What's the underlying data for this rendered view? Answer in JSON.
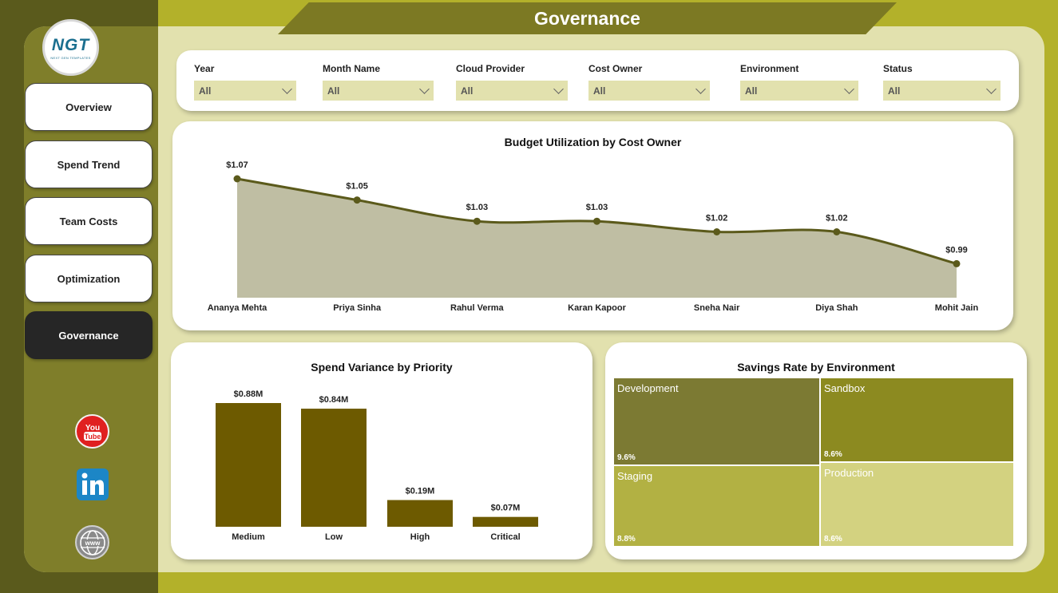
{
  "page_title": "Governance",
  "logo": {
    "text": "NGT",
    "subtitle": "NEXT GEN TEMPLATES"
  },
  "nav": [
    {
      "label": "Overview"
    },
    {
      "label": "Spend Trend"
    },
    {
      "label": "Team Costs"
    },
    {
      "label": "Optimization"
    },
    {
      "label": "Governance",
      "active": true
    }
  ],
  "social": [
    {
      "icon": "youtube-icon",
      "label": "You Tube"
    },
    {
      "icon": "linkedin-icon",
      "label": "in"
    },
    {
      "icon": "www-globe-icon",
      "label": "www"
    }
  ],
  "filters": [
    {
      "label": "Year",
      "value": "All"
    },
    {
      "label": "Month Name",
      "value": "All"
    },
    {
      "label": "Cloud Provider",
      "value": "All"
    },
    {
      "label": "Cost Owner",
      "value": "All"
    },
    {
      "label": "Environment",
      "value": "All"
    },
    {
      "label": "Status",
      "value": "All"
    }
  ],
  "colors": {
    "accent": "#7c7923",
    "line": "#5b5a1b",
    "area_fill": "#bfbea3",
    "bar": "#6d5a00",
    "panel_bg": "#e2e1ae"
  },
  "chart_data": [
    {
      "type": "area",
      "title": "Budget Utilization by Cost Owner",
      "categories": [
        "Ananya Mehta",
        "Priya Sinha",
        "Rahul Verma",
        "Karan Kapoor",
        "Sneha Nair",
        "Diya Shah",
        "Mohit Jain"
      ],
      "values": [
        1.07,
        1.05,
        1.03,
        1.03,
        1.02,
        1.02,
        0.99
      ],
      "labels": [
        "$1.07",
        "$1.05",
        "$1.03",
        "$1.03",
        "$1.02",
        "$1.02",
        "$0.99"
      ],
      "ylim": [
        0.97,
        1.07
      ],
      "grid": false
    },
    {
      "type": "bar",
      "title": "Spend Variance by Priority",
      "categories": [
        "Medium",
        "Low",
        "High",
        "Critical"
      ],
      "values": [
        0.88,
        0.84,
        0.19,
        0.07
      ],
      "labels": [
        "$0.88M",
        "$0.84M",
        "$0.19M",
        "$0.07M"
      ],
      "ylim": [
        0,
        0.88
      ],
      "grid": false
    },
    {
      "type": "treemap",
      "title": "Savings Rate by Environment",
      "items": [
        {
          "name": "Development",
          "value": 9.6,
          "label": "9.6%",
          "color": "#7c7a33"
        },
        {
          "name": "Sandbox",
          "value": 8.6,
          "label": "8.6%",
          "color": "#8c8a20"
        },
        {
          "name": "Staging",
          "value": 8.8,
          "label": "8.8%",
          "color": "#b2b143"
        },
        {
          "name": "Production",
          "value": 8.6,
          "label": "8.6%",
          "color": "#d3d280"
        }
      ]
    }
  ]
}
